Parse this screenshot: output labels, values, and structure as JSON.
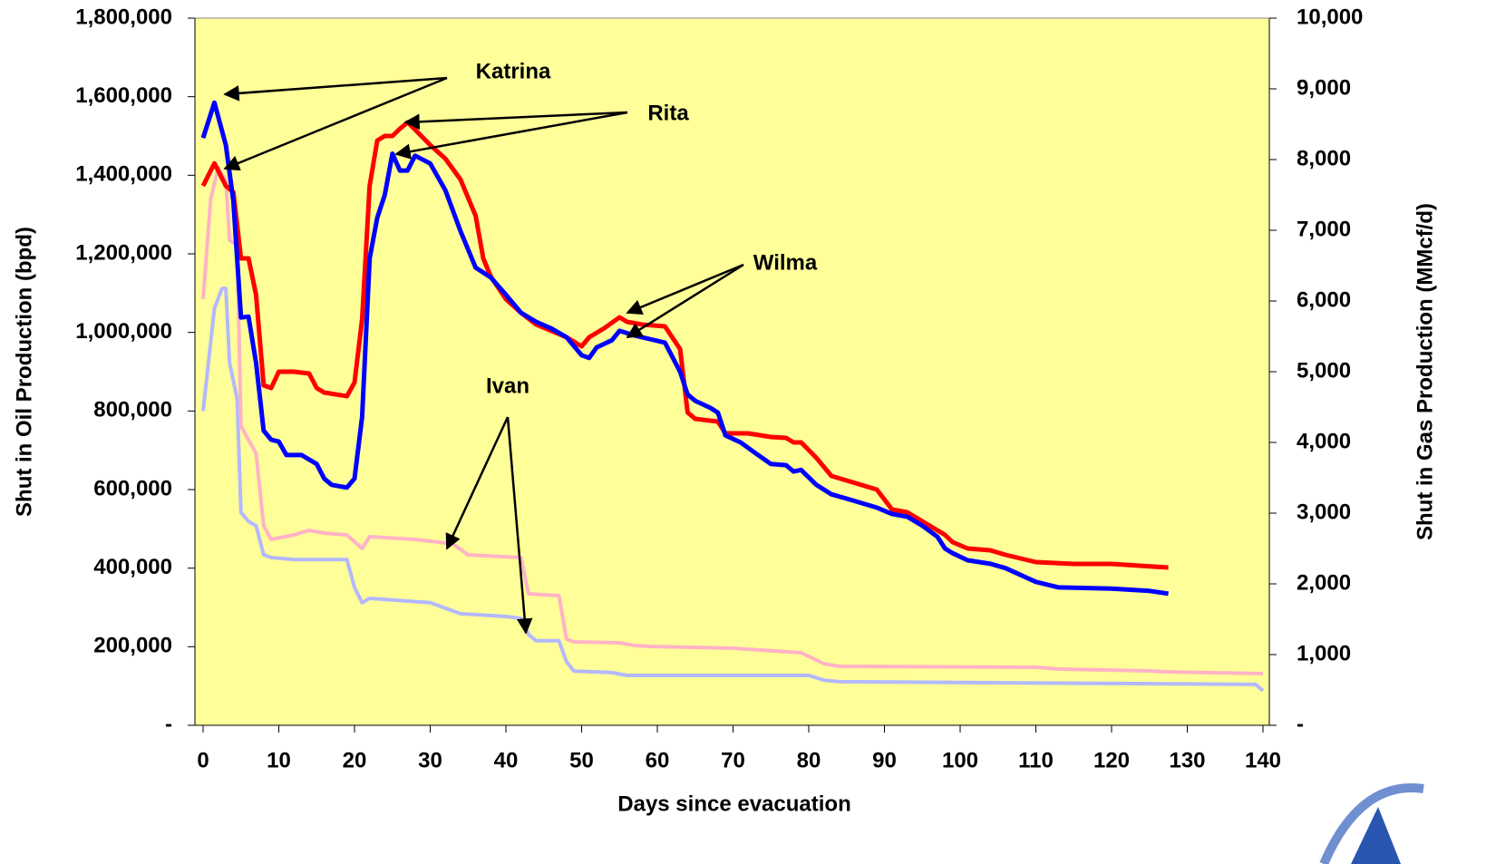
{
  "chart_data": {
    "type": "line",
    "xlabel": "Days since evacuation",
    "ylabel": "Shut in Oil Production (bpd)",
    "y2label": "Shut in Gas Production (MMcf/d)",
    "annotations": [
      "Katrina",
      "Rita",
      "Wilma",
      "Ivan"
    ],
    "background": "#ffff99",
    "xlim": [
      0,
      140
    ],
    "xticks": [
      0,
      10,
      20,
      30,
      40,
      50,
      60,
      70,
      80,
      90,
      100,
      110,
      120,
      130,
      140
    ],
    "ylim": [
      0,
      1800000
    ],
    "yticks": [
      {
        "value": 0,
        "label": "-"
      },
      {
        "value": 200000,
        "label": "200,000"
      },
      {
        "value": 400000,
        "label": "400,000"
      },
      {
        "value": 600000,
        "label": "600,000"
      },
      {
        "value": 800000,
        "label": "800,000"
      },
      {
        "value": 1000000,
        "label": "1,000,000"
      },
      {
        "value": 1200000,
        "label": "1,200,000"
      },
      {
        "value": 1400000,
        "label": "1,400,000"
      },
      {
        "value": 1600000,
        "label": "1,600,000"
      },
      {
        "value": 1800000,
        "label": "1,800,000"
      }
    ],
    "y2lim": [
      0,
      10000
    ],
    "y2ticks": [
      {
        "value": 0,
        "label": "-"
      },
      {
        "value": 1000,
        "label": "1,000"
      },
      {
        "value": 2000,
        "label": "2,000"
      },
      {
        "value": 3000,
        "label": "3,000"
      },
      {
        "value": 4000,
        "label": "4,000"
      },
      {
        "value": 5000,
        "label": "5,000"
      },
      {
        "value": 6000,
        "label": "6,000"
      },
      {
        "value": 7000,
        "label": "7,000"
      },
      {
        "value": 8000,
        "label": "8,000"
      },
      {
        "value": 9000,
        "label": "9,000"
      },
      {
        "value": 10000,
        "label": "10,000"
      }
    ],
    "series": [
      {
        "color": "#b3b8ff",
        "axis": "y",
        "x": [
          0,
          1.5,
          2.5,
          3,
          3.5,
          4.5,
          5,
          6,
          7,
          8,
          9,
          12,
          19,
          20,
          21,
          22,
          30,
          34,
          40,
          42,
          43,
          44,
          47,
          48,
          49,
          54,
          56,
          80,
          82,
          84,
          139,
          140
        ],
        "values": [
          800000,
          1061000,
          1112000,
          1112000,
          923000,
          830000,
          542000,
          519000,
          508000,
          434000,
          427000,
          422000,
          422000,
          351000,
          312000,
          323000,
          312000,
          284000,
          277000,
          272000,
          231000,
          215000,
          215000,
          162000,
          138000,
          134000,
          127000,
          127000,
          115000,
          111000,
          104000,
          88000
        ]
      },
      {
        "color": "#ffb3c6",
        "axis": "y2",
        "x": [
          0,
          1,
          2,
          3,
          3.5,
          4.5,
          5,
          6,
          7,
          8,
          9,
          12,
          14,
          16,
          19,
          21,
          22,
          28,
          33,
          35,
          42,
          43,
          47,
          48,
          49,
          55,
          57,
          59,
          70,
          79,
          82,
          84,
          110,
          113,
          125,
          127,
          140
        ],
        "values": [
          6026,
          7436,
          7885,
          7692,
          6859,
          6795,
          4231,
          4038,
          3846,
          2820,
          2628,
          2692,
          2756,
          2718,
          2692,
          2500,
          2667,
          2628,
          2564,
          2410,
          2372,
          1859,
          1833,
          1218,
          1179,
          1167,
          1128,
          1115,
          1090,
          1026,
          872,
          833,
          821,
          795,
          769,
          756,
          731
        ]
      },
      {
        "color": "#ff0000",
        "axis": "y2",
        "x": [
          0,
          1.5,
          3,
          4,
          5,
          6,
          7,
          8,
          9,
          10,
          12,
          14,
          15,
          16,
          19,
          20,
          21,
          22,
          23,
          24,
          25,
          26,
          27,
          28,
          30,
          32,
          34,
          36,
          37,
          38,
          40,
          42,
          44,
          46,
          48,
          50,
          51,
          53,
          55,
          56,
          58,
          61,
          63,
          64,
          65,
          68,
          69,
          72,
          75,
          77,
          78,
          79,
          81,
          83,
          85,
          89,
          91,
          93,
          95,
          98,
          99,
          101,
          104,
          106,
          110,
          115,
          120,
          127.5
        ],
        "values": [
          7628,
          7948,
          7628,
          7538,
          6603,
          6603,
          6090,
          4808,
          4769,
          5000,
          5000,
          4974,
          4769,
          4705,
          4654,
          4846,
          5743,
          7628,
          8269,
          8333,
          8333,
          8436,
          8526,
          8423,
          8205,
          8013,
          7718,
          7205,
          6603,
          6346,
          6026,
          5833,
          5667,
          5577,
          5487,
          5359,
          5487,
          5615,
          5769,
          5705,
          5667,
          5641,
          5320,
          4423,
          4333,
          4295,
          4128,
          4128,
          4077,
          4064,
          4000,
          4000,
          3782,
          3526,
          3461,
          3333,
          3051,
          3013,
          2885,
          2692,
          2590,
          2500,
          2474,
          2410,
          2308,
          2282,
          2282,
          2231
        ]
      },
      {
        "color": "#0000ff",
        "axis": "y",
        "x": [
          0,
          1.5,
          3,
          4,
          5,
          6,
          7,
          8,
          9,
          10,
          11,
          13,
          15,
          16,
          17,
          19,
          20,
          21,
          22,
          23,
          24,
          25,
          26,
          27,
          28,
          30,
          32,
          34,
          36,
          38,
          40,
          42,
          44,
          46,
          48,
          50,
          51,
          52,
          54,
          55,
          57,
          59,
          61,
          63,
          64,
          65,
          67,
          68,
          69,
          71,
          73,
          75,
          77,
          78,
          79,
          81,
          83,
          85,
          89,
          91,
          93,
          95,
          97,
          98,
          99,
          101,
          104,
          106,
          110,
          113,
          120,
          125,
          127.5
        ],
        "values": [
          1495000,
          1585000,
          1477000,
          1334000,
          1038000,
          1040000,
          923000,
          750000,
          727000,
          722000,
          688000,
          688000,
          665000,
          628000,
          612000,
          605000,
          628000,
          785000,
          1188000,
          1292000,
          1350000,
          1455000,
          1412000,
          1412000,
          1450000,
          1430000,
          1362000,
          1258000,
          1165000,
          1140000,
          1096000,
          1050000,
          1027000,
          1010000,
          988000,
          942000,
          935000,
          962000,
          980000,
          1004000,
          992000,
          983000,
          974000,
          900000,
          842000,
          826000,
          808000,
          796000,
          738000,
          720000,
          692000,
          665000,
          662000,
          646000,
          650000,
          612000,
          588000,
          577000,
          554000,
          538000,
          531000,
          508000,
          480000,
          450000,
          438000,
          420000,
          411000,
          400000,
          365000,
          351000,
          348000,
          342000,
          335000
        ]
      }
    ]
  }
}
